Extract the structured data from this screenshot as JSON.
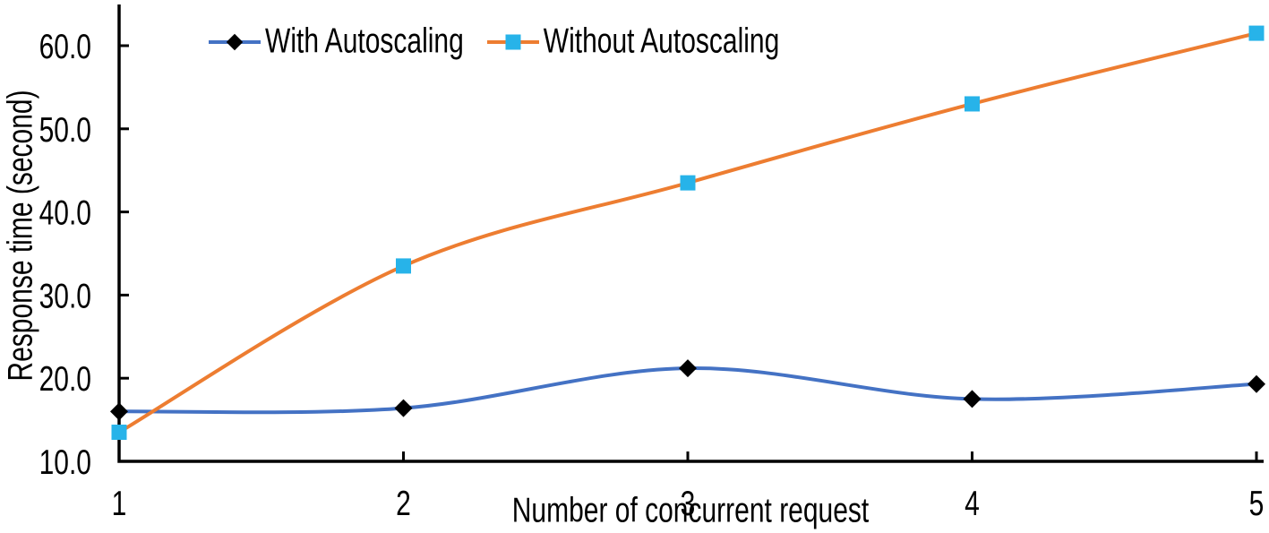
{
  "chart_data": {
    "type": "line",
    "title": "",
    "xlabel": "Number of concurrent request",
    "ylabel": "Response time (second)",
    "x": [
      1,
      2,
      3,
      4,
      5
    ],
    "xtick_labels": [
      "1",
      "2",
      "3",
      "4",
      "5"
    ],
    "xlim": [
      1,
      5
    ],
    "ylim": [
      10,
      65
    ],
    "yticks": [
      10,
      20,
      30,
      40,
      50,
      60
    ],
    "ytick_labels": [
      "10.0",
      "20.0",
      "30.0",
      "40.0",
      "50.0",
      "60.0"
    ],
    "grid": false,
    "legend_position": "top",
    "line_style": "smooth",
    "series": [
      {
        "name": "With Autoscaling",
        "values": [
          16.0,
          16.4,
          21.2,
          17.5,
          19.3
        ],
        "line_color": "#4472C4",
        "marker": "diamond",
        "marker_color": "#000000"
      },
      {
        "name": "Without Autoscaling",
        "values": [
          13.5,
          33.5,
          43.5,
          53.0,
          61.5
        ],
        "line_color": "#ED7D31",
        "marker": "square",
        "marker_color": "#27B3E9"
      }
    ],
    "axis_color": "#000000",
    "background_color": "#FFFFFF"
  }
}
